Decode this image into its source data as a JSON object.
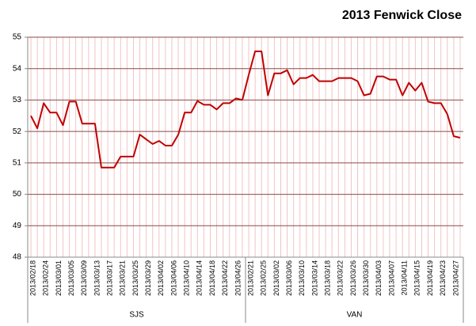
{
  "chart_data": {
    "type": "line",
    "title": "2013 Fenwick Close",
    "color": "#c00000",
    "ylim": [
      48,
      55
    ],
    "yticks": [
      48,
      49,
      50,
      51,
      52,
      53,
      54,
      55
    ],
    "grid": true,
    "groups": [
      {
        "name": "SJS",
        "categories": [
          "2013/02/18",
          null,
          "2013/02/24",
          null,
          "2013/03/01",
          null,
          "2013/03/05",
          null,
          "2013/03/09",
          null,
          "2013/03/13",
          null,
          "2013/03/17",
          null,
          "2013/03/21",
          null,
          "2013/03/25",
          null,
          "2013/03/29",
          null,
          "2013/04/02",
          null,
          "2013/04/06",
          null,
          "2013/04/10",
          null,
          "2013/04/14",
          null,
          "2013/04/18",
          null,
          "2013/04/22",
          null,
          "2013/04/26",
          null
        ],
        "values": [
          52.5,
          52.1,
          52.9,
          52.6,
          52.6,
          52.2,
          52.95,
          52.95,
          52.25,
          52.25,
          52.25,
          50.85,
          50.85,
          50.85,
          51.2,
          51.2,
          51.2,
          51.9,
          51.75,
          51.6,
          51.7,
          51.55,
          51.55,
          51.9,
          52.6,
          52.6,
          52.97,
          52.85,
          52.85,
          52.7,
          52.9,
          52.9,
          53.05,
          53.0
        ]
      },
      {
        "name": "VAN",
        "categories": [
          "2013/02/21",
          null,
          "2013/02/25",
          null,
          "2013/03/02",
          null,
          "2013/03/06",
          null,
          "2013/03/10",
          null,
          "2013/03/14",
          null,
          "2013/03/18",
          null,
          "2013/03/22",
          null,
          "2013/03/26",
          null,
          "2013/03/30",
          null,
          "2013/04/03",
          null,
          "2013/04/07",
          null,
          "2013/04/11",
          null,
          "2013/04/15",
          null,
          "2013/04/19",
          null,
          "2013/04/23",
          null,
          "2013/04/27",
          null
        ],
        "values": [
          53.8,
          54.55,
          54.55,
          53.15,
          53.85,
          53.85,
          53.95,
          53.5,
          53.7,
          53.7,
          53.8,
          53.6,
          53.6,
          53.6,
          53.7,
          53.7,
          53.7,
          53.6,
          53.15,
          53.2,
          53.75,
          53.75,
          53.65,
          53.65,
          53.15,
          53.55,
          53.3,
          53.55,
          52.95,
          52.9,
          52.9,
          52.55,
          51.85,
          51.8
        ]
      }
    ]
  }
}
